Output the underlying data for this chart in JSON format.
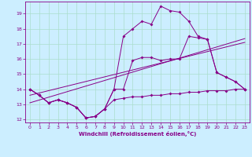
{
  "xlabel": "Windchill (Refroidissement éolien,°C)",
  "background_color": "#cceeff",
  "grid_color": "#aaddcc",
  "line_color": "#880088",
  "xlim": [
    -0.5,
    23.5
  ],
  "ylim": [
    11.8,
    19.8
  ],
  "yticks": [
    12,
    13,
    14,
    15,
    16,
    17,
    18,
    19
  ],
  "xticks": [
    0,
    1,
    2,
    3,
    4,
    5,
    6,
    7,
    8,
    9,
    10,
    11,
    12,
    13,
    14,
    15,
    16,
    17,
    18,
    19,
    20,
    21,
    22,
    23
  ],
  "series_bottom_x": [
    0,
    1,
    2,
    3,
    4,
    5,
    6,
    7,
    8,
    9,
    10,
    11,
    12,
    13,
    14,
    15,
    16,
    17,
    18,
    19,
    20,
    21,
    22,
    23
  ],
  "series_bottom_y": [
    14.0,
    13.6,
    13.1,
    13.3,
    13.1,
    12.8,
    12.1,
    12.2,
    12.7,
    13.3,
    13.4,
    13.5,
    13.5,
    13.6,
    13.6,
    13.7,
    13.7,
    13.8,
    13.8,
    13.9,
    13.9,
    13.9,
    14.0,
    14.0
  ],
  "series_mid_x": [
    0,
    1,
    2,
    3,
    4,
    5,
    6,
    7,
    8,
    9,
    10,
    11,
    12,
    13,
    14,
    15,
    16,
    17,
    18,
    19,
    20,
    21,
    22,
    23
  ],
  "series_mid_y": [
    14.0,
    13.6,
    13.1,
    13.3,
    13.1,
    12.8,
    12.1,
    12.2,
    12.7,
    14.0,
    14.0,
    15.9,
    16.1,
    16.1,
    15.9,
    16.0,
    16.0,
    17.5,
    17.4,
    17.3,
    15.1,
    14.8,
    14.5,
    14.0
  ],
  "series_top_x": [
    0,
    1,
    2,
    3,
    4,
    5,
    6,
    7,
    8,
    9,
    10,
    11,
    12,
    13,
    14,
    15,
    16,
    17,
    18,
    19,
    20,
    21,
    22,
    23
  ],
  "series_top_y": [
    14.0,
    13.6,
    13.1,
    13.3,
    13.1,
    12.8,
    12.1,
    12.2,
    12.7,
    14.0,
    17.5,
    18.0,
    18.5,
    18.3,
    19.5,
    19.2,
    19.1,
    18.5,
    17.5,
    17.3,
    15.1,
    14.8,
    14.5,
    14.0
  ],
  "trend1_x": [
    0,
    23
  ],
  "trend1_y": [
    13.1,
    17.35
  ],
  "trend2_x": [
    0,
    23
  ],
  "trend2_y": [
    13.6,
    17.1
  ]
}
